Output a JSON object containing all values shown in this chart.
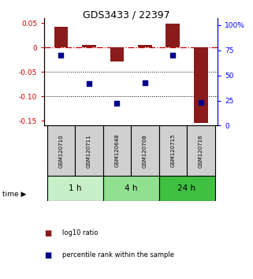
{
  "title": "GDS3433 / 22397",
  "samples": [
    "GSM120710",
    "GSM120711",
    "GSM120648",
    "GSM120708",
    "GSM120715",
    "GSM120716"
  ],
  "groups": [
    {
      "label": "1 h",
      "indices": [
        0,
        1
      ],
      "color": "#c8f0c8"
    },
    {
      "label": "4 h",
      "indices": [
        2,
        3
      ],
      "color": "#90e090"
    },
    {
      "label": "24 h",
      "indices": [
        4,
        5
      ],
      "color": "#40c040"
    }
  ],
  "log10_ratio": [
    0.042,
    0.005,
    -0.028,
    0.005,
    0.048,
    -0.155
  ],
  "percentile_rank": [
    70,
    42,
    22,
    43,
    70,
    23
  ],
  "ylim_left": [
    -0.16,
    0.06
  ],
  "ylim_right": [
    0,
    107
  ],
  "yticks_left": [
    0.05,
    0,
    -0.05,
    -0.1,
    -0.15
  ],
  "yticks_right": [
    100,
    75,
    50,
    25,
    0
  ],
  "bar_color": "#8b1a1a",
  "dot_color": "#00008b",
  "zero_line_color": "#cc0000",
  "grid_line_color": "#000000",
  "legend_bar_label": "log10 ratio",
  "legend_dot_label": "percentile rank within the sample",
  "time_label": "time"
}
